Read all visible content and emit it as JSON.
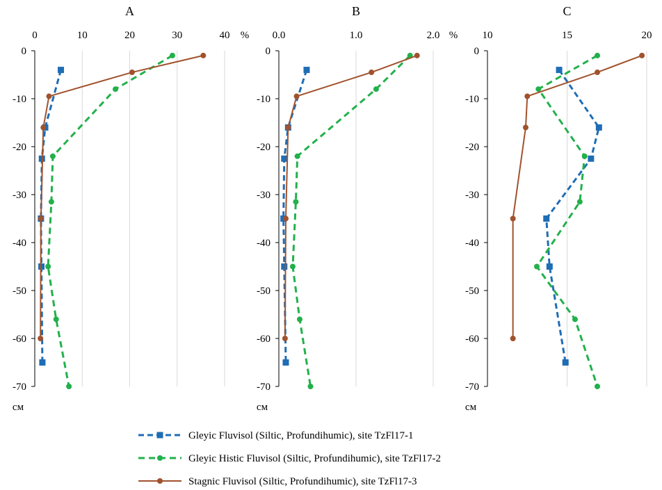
{
  "colors": {
    "s1": "#1F6DB5",
    "s2": "#22B04B",
    "s3": "#A0522D",
    "grid": "#D9D9D9"
  },
  "units": {
    "x": "%",
    "y": "см"
  },
  "legend": {
    "position": "bottom",
    "items": [
      {
        "series": "s1",
        "label": "Gleyic Fluvisol (Siltic, Profundihumic), site TzFl17-1"
      },
      {
        "series": "s2",
        "label": "Gleyic Histic Fluvisol (Siltic, Profundihumic), site TzFl17-2"
      },
      {
        "series": "s3",
        "label": "Stagnic Fluvisol (Siltic, Profundihumic), site TzFl17-3"
      }
    ]
  },
  "chart_data": [
    {
      "type": "line",
      "title": "A",
      "xlim": [
        0,
        40
      ],
      "xticks": [
        "0",
        "10",
        "20",
        "30",
        "40"
      ],
      "xunit": "%",
      "ylim": [
        -70,
        0
      ],
      "yticks": [
        "0",
        "-10",
        "-20",
        "-30",
        "-40",
        "-50",
        "-60",
        "-70"
      ],
      "yunit": "см",
      "grid": true,
      "series": [
        {
          "key": "s1",
          "name": "Gleyic Fluvisol (Siltic, Profundihumic), site TzFl17-1",
          "marker": "square",
          "dash": true,
          "points": [
            [
              5.5,
              -4
            ],
            [
              2.2,
              -16
            ],
            [
              1.5,
              -22.5
            ],
            [
              1.3,
              -35
            ],
            [
              1.4,
              -45
            ],
            [
              1.6,
              -65
            ]
          ]
        },
        {
          "key": "s2",
          "name": "Gleyic Histic Fluvisol (Siltic, Profundihumic), site TzFl17-2",
          "marker": "circle",
          "dash": true,
          "points": [
            [
              29,
              -1
            ],
            [
              17,
              -8
            ],
            [
              3.8,
              -22
            ],
            [
              3.5,
              -31.5
            ],
            [
              2.8,
              -45
            ],
            [
              4.5,
              -56
            ],
            [
              7.2,
              -70
            ]
          ]
        },
        {
          "key": "s3",
          "name": "Stagnic Fluvisol (Siltic, Profundihumic), site TzFl17-3",
          "marker": "circle",
          "dash": false,
          "points": [
            [
              35.5,
              -1
            ],
            [
              20.5,
              -4.5
            ],
            [
              3,
              -9.5
            ],
            [
              1.8,
              -16
            ],
            [
              1.3,
              -35
            ],
            [
              1.2,
              -60
            ]
          ]
        }
      ]
    },
    {
      "type": "line",
      "title": "B",
      "xlim": [
        0,
        2
      ],
      "xticks": [
        "0.0",
        "1.0",
        "2.0"
      ],
      "xunit": "%",
      "ylim": [
        -70,
        0
      ],
      "yticks": [
        "0",
        "-10",
        "-20",
        "-30",
        "-40",
        "-50",
        "-60",
        "-70"
      ],
      "yunit": "см",
      "grid": true,
      "series": [
        {
          "key": "s1",
          "name": "Gleyic Fluvisol (Siltic, Profundihumic), site TzFl17-1",
          "marker": "square",
          "dash": true,
          "points": [
            [
              0.36,
              -4
            ],
            [
              0.12,
              -16
            ],
            [
              0.07,
              -22.5
            ],
            [
              0.06,
              -35
            ],
            [
              0.07,
              -45
            ],
            [
              0.09,
              -65
            ]
          ]
        },
        {
          "key": "s2",
          "name": "Gleyic Histic Fluvisol (Siltic, Profundihumic), site TzFl17-2",
          "marker": "circle",
          "dash": true,
          "points": [
            [
              1.7,
              -1
            ],
            [
              1.26,
              -8
            ],
            [
              0.24,
              -22
            ],
            [
              0.22,
              -31.5
            ],
            [
              0.18,
              -45
            ],
            [
              0.27,
              -56
            ],
            [
              0.41,
              -70
            ]
          ]
        },
        {
          "key": "s3",
          "name": "Stagnic Fluvisol (Siltic, Profundihumic), site TzFl17-3",
          "marker": "circle",
          "dash": false,
          "points": [
            [
              1.79,
              -1
            ],
            [
              1.2,
              -4.5
            ],
            [
              0.23,
              -9.5
            ],
            [
              0.12,
              -16
            ],
            [
              0.09,
              -35
            ],
            [
              0.08,
              -60
            ]
          ]
        }
      ]
    },
    {
      "type": "line",
      "title": "C",
      "xlim": [
        10,
        20
      ],
      "xticks": [
        "10",
        "15",
        "20"
      ],
      "xunit": "",
      "ylim": [
        -70,
        0
      ],
      "yticks": [
        "0",
        "-10",
        "-20",
        "-30",
        "-40",
        "-50",
        "-60",
        "-70"
      ],
      "yunit": "см",
      "grid": true,
      "series": [
        {
          "key": "s1",
          "name": "Gleyic Fluvisol (Siltic, Profundihumic), site TzFl17-1",
          "marker": "square",
          "dash": true,
          "points": [
            [
              14.5,
              -4
            ],
            [
              17,
              -16
            ],
            [
              16.5,
              -22.5
            ],
            [
              13.7,
              -35
            ],
            [
              13.9,
              -45
            ],
            [
              14.9,
              -65
            ]
          ]
        },
        {
          "key": "s2",
          "name": "Gleyic Histic Fluvisol (Siltic, Profundihumic), site TzFl17-2",
          "marker": "circle",
          "dash": true,
          "points": [
            [
              16.9,
              -1
            ],
            [
              13.2,
              -8
            ],
            [
              16.1,
              -22
            ],
            [
              15.8,
              -31.5
            ],
            [
              13.1,
              -45
            ],
            [
              15.5,
              -56
            ],
            [
              16.9,
              -70
            ]
          ]
        },
        {
          "key": "s3",
          "name": "Stagnic Fluvisol (Siltic, Profundihumic), site TzFl17-3",
          "marker": "circle",
          "dash": false,
          "points": [
            [
              19.7,
              -1
            ],
            [
              16.9,
              -4.5
            ],
            [
              12.5,
              -9.5
            ],
            [
              12.4,
              -16
            ],
            [
              11.6,
              -35
            ],
            [
              11.6,
              -60
            ]
          ]
        }
      ]
    }
  ]
}
